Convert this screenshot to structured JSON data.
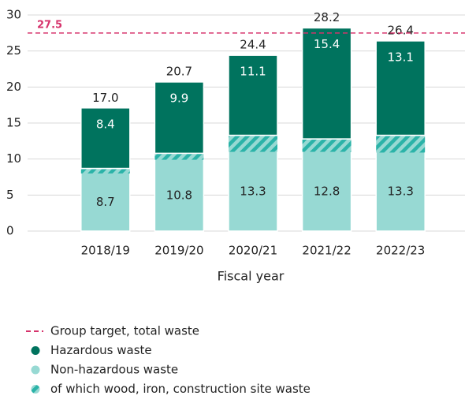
{
  "chart_data": {
    "type": "stacked_bar",
    "x_label": "Fiscal year",
    "categories": [
      "2018/19",
      "2019/20",
      "2020/21",
      "2021/22",
      "2022/23"
    ],
    "series": [
      {
        "name": "Non-hazardous waste",
        "color": "#97d9d3",
        "values": [
          8.7,
          10.8,
          13.3,
          12.8,
          13.3
        ]
      },
      {
        "name": "Hazardous waste",
        "color": "#00735e",
        "values": [
          8.4,
          9.9,
          11.1,
          15.4,
          13.1
        ]
      }
    ],
    "subset": {
      "name": "of which wood, iron, construction site waste",
      "color": "#2bb3a8",
      "values": [
        0.7,
        0.9,
        2.3,
        1.8,
        2.4
      ]
    },
    "totals": {
      "values": [
        17.0,
        20.7,
        24.4,
        28.2,
        26.4
      ],
      "value_labels": [
        "17.0",
        "20.7",
        "24.4",
        "28.2",
        "26.4"
      ]
    },
    "target": {
      "name": "Group target, total waste",
      "value": 27.5,
      "color": "#d6336c"
    },
    "ylim": [
      0,
      30
    ],
    "yticks": [
      0,
      5,
      10,
      15,
      20,
      25,
      30
    ],
    "grid": true
  }
}
